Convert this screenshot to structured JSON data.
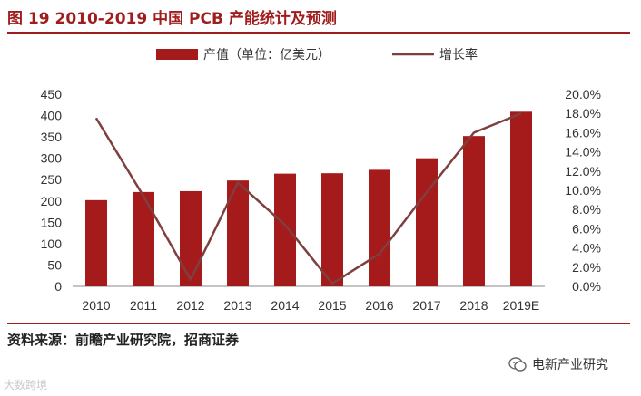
{
  "figure": {
    "title": "图 19 2010-2019 中国 PCB 产能统计及预测",
    "source": "资料来源：前瞻产业研究院，招商证券",
    "watermark_left": "大数跨境",
    "watermark_right": "电新产业研究"
  },
  "colors": {
    "bar": "#a51b1b",
    "line": "#7f3f3f",
    "accent": "#a01d1d"
  },
  "chart_data": {
    "type": "bar",
    "categories": [
      "2010",
      "2011",
      "2012",
      "2013",
      "2014",
      "2015",
      "2016",
      "2017",
      "2018",
      "2019E"
    ],
    "series": [
      {
        "name": "产值（单位：亿美元）",
        "type": "bar",
        "axis": "left",
        "values": [
          202,
          221,
          223,
          248,
          264,
          265,
          273,
          300,
          352,
          409
        ]
      },
      {
        "name": "增长率",
        "type": "line",
        "axis": "right",
        "values": [
          0.175,
          0.094,
          0.007,
          0.108,
          0.064,
          0.003,
          0.034,
          0.098,
          0.16,
          0.18
        ]
      }
    ],
    "y_left": {
      "min": 0,
      "max": 450,
      "step": 50,
      "tick_labels": [
        "0",
        "50",
        "100",
        "150",
        "200",
        "250",
        "300",
        "350",
        "400",
        "450"
      ]
    },
    "y_right": {
      "min": 0,
      "max": 0.2,
      "step": 0.02,
      "tick_labels": [
        "0.0%",
        "2.0%",
        "4.0%",
        "6.0%",
        "8.0%",
        "10.0%",
        "12.0%",
        "14.0%",
        "16.0%",
        "18.0%",
        "20.0%"
      ]
    },
    "grid": false,
    "legend_position": "top"
  }
}
